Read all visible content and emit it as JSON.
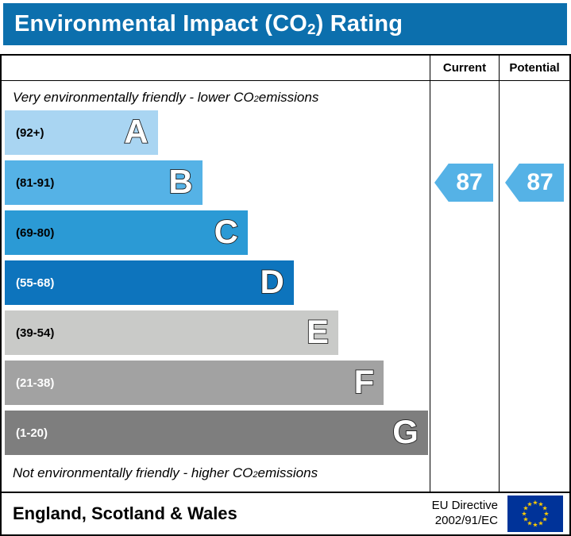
{
  "header": {
    "title_pre": "Environmental Impact (CO",
    "title_sub": "2",
    "title_post": ") Rating"
  },
  "table": {
    "current_label": "Current",
    "potential_label": "Potential"
  },
  "notes": {
    "top_pre": "Very environmentally friendly - lower CO",
    "top_sub": "2",
    "top_post": " emissions",
    "bottom_pre": "Not environmentally friendly - higher CO",
    "bottom_sub": "2",
    "bottom_post": " emissions"
  },
  "bands": [
    {
      "letter": "A",
      "range": "(92+)",
      "color": "#a9d5f2",
      "range_color": "#000000",
      "width_pct": 36.0
    },
    {
      "letter": "B",
      "range": "(81-91)",
      "color": "#55b2e6",
      "range_color": "#000000",
      "width_pct": 46.5
    },
    {
      "letter": "C",
      "range": "(69-80)",
      "color": "#2b9ad5",
      "range_color": "#000000",
      "width_pct": 57.2
    },
    {
      "letter": "D",
      "range": "(55-68)",
      "color": "#0d74bd",
      "range_color": "#ffffff",
      "width_pct": 68.0
    },
    {
      "letter": "E",
      "range": "(39-54)",
      "color": "#c9cac8",
      "range_color": "#000000",
      "width_pct": 78.5
    },
    {
      "letter": "F",
      "range": "(21-38)",
      "color": "#a2a2a2",
      "range_color": "#ffffff",
      "width_pct": 89.2
    },
    {
      "letter": "G",
      "range": "(1-20)",
      "color": "#7e7e7e",
      "range_color": "#ffffff",
      "width_pct": 99.6
    }
  ],
  "ratings": {
    "current": {
      "value": "87",
      "color": "#55b2e6"
    },
    "potential": {
      "value": "87",
      "color": "#55b2e6"
    }
  },
  "footer": {
    "region": "England, Scotland & Wales",
    "directive_line1": "EU Directive",
    "directive_line2": "2002/91/EC"
  },
  "colors": {
    "header_bg": "#0c6fad",
    "eu_flag_blue": "#003399",
    "eu_star_yellow": "#ffcc00"
  },
  "chart_data": {
    "type": "bar",
    "title": "Environmental Impact (CO2) Rating",
    "categories": [
      "A",
      "B",
      "C",
      "D",
      "E",
      "F",
      "G"
    ],
    "ranges": [
      "92+",
      "81-91",
      "69-80",
      "55-68",
      "39-54",
      "21-38",
      "1-20"
    ],
    "band_colors": [
      "#a9d5f2",
      "#55b2e6",
      "#2b9ad5",
      "#0d74bd",
      "#c9cac8",
      "#a2a2a2",
      "#7e7e7e"
    ],
    "bar_width_pct": [
      36.0,
      46.5,
      57.2,
      68.0,
      78.5,
      89.2,
      99.6
    ],
    "series": [
      {
        "name": "Current",
        "values": [
          87
        ]
      },
      {
        "name": "Potential",
        "values": [
          87
        ]
      }
    ],
    "legend_position": "top-right-columns",
    "grid": false
  }
}
